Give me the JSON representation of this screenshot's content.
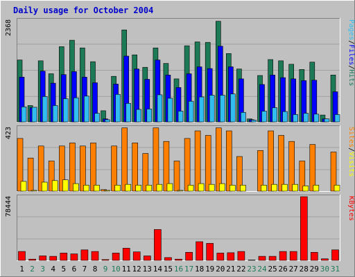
{
  "title": "Daily usage for October 2004",
  "colors": {
    "background": "#c0c0c0",
    "plot_bg": "#c0c0c0",
    "hits": "#1d7a57",
    "files": "#0000ff",
    "pages": "#32bdf0",
    "visits": "#ff8000",
    "sites": "#ffff00",
    "kbytes": "#ff0000",
    "title": "#0000cc",
    "weekday_label": "#000000",
    "weekend_label": "#1d7a57"
  },
  "chart_data": [
    {
      "type": "bar",
      "panel": "hits-files-pages",
      "ymax_label": "2368",
      "ymax": 2368,
      "legend": [
        {
          "text": "Pages",
          "color": "#32bdf0"
        },
        {
          "text": "/",
          "color": "#000000"
        },
        {
          "text": "Files",
          "color": "#0000ff"
        },
        {
          "text": "/",
          "color": "#000000"
        },
        {
          "text": "Hits",
          "color": "#1d7a57"
        }
      ],
      "categories": [
        "1",
        "2",
        "3",
        "4",
        "5",
        "6",
        "7",
        "8",
        "9",
        "10",
        "11",
        "12",
        "13",
        "14",
        "15",
        "16",
        "17",
        "18",
        "19",
        "20",
        "21",
        "22",
        "23",
        "24",
        "25",
        "26",
        "27",
        "28",
        "29",
        "30",
        "31"
      ],
      "series": [
        {
          "name": "Hits",
          "values": [
            1440,
            380,
            1420,
            1120,
            1750,
            1900,
            1720,
            1400,
            260,
            1060,
            2140,
            1560,
            1270,
            1720,
            1360,
            1000,
            1770,
            1860,
            1850,
            2340,
            1590,
            1230,
            70,
            1080,
            1450,
            1420,
            1340,
            1220,
            1390,
            160,
            1090
          ]
        },
        {
          "name": "Files",
          "values": [
            1040,
            330,
            1180,
            900,
            1100,
            1170,
            1040,
            910,
            70,
            880,
            1530,
            1230,
            990,
            1440,
            1090,
            800,
            1120,
            1280,
            1240,
            1760,
            1280,
            1000,
            50,
            870,
            1090,
            1030,
            1000,
            960,
            970,
            70,
            700
          ]
        },
        {
          "name": "Pages",
          "values": [
            350,
            340,
            590,
            380,
            540,
            560,
            600,
            200,
            50,
            640,
            430,
            290,
            300,
            630,
            550,
            250,
            480,
            580,
            620,
            620,
            650,
            220,
            40,
            250,
            330,
            240,
            170,
            200,
            180,
            70,
            170
          ]
        }
      ]
    },
    {
      "type": "bar",
      "panel": "visits-sites",
      "ymax_label": "423",
      "ymax": 423,
      "legend": [
        {
          "text": "Sites",
          "color": "#ff8000"
        },
        {
          "text": "/",
          "color": "#000000"
        },
        {
          "text": "Visits",
          "color": "#ffff00"
        }
      ],
      "categories": [
        "1",
        "2",
        "3",
        "4",
        "5",
        "6",
        "7",
        "8",
        "9",
        "10",
        "11",
        "12",
        "13",
        "14",
        "15",
        "16",
        "17",
        "18",
        "19",
        "20",
        "21",
        "22",
        "23",
        "24",
        "25",
        "26",
        "27",
        "28",
        "29",
        "30",
        "31"
      ],
      "series": [
        {
          "name": "Visits",
          "values": [
            350,
            220,
            300,
            200,
            300,
            320,
            300,
            320,
            10,
            300,
            420,
            320,
            250,
            420,
            330,
            200,
            350,
            400,
            370,
            420,
            400,
            230,
            0,
            270,
            400,
            370,
            330,
            200,
            310,
            0,
            260
          ]
        },
        {
          "name": "Sites",
          "values": [
            65,
            5,
            60,
            70,
            75,
            50,
            40,
            40,
            5,
            40,
            45,
            40,
            40,
            45,
            50,
            5,
            40,
            50,
            45,
            50,
            40,
            40,
            0,
            40,
            45,
            45,
            45,
            35,
            40,
            0,
            40
          ]
        }
      ]
    },
    {
      "type": "bar",
      "panel": "kbytes",
      "ymax_label": "78444",
      "ymax": 78444,
      "legend": [
        {
          "text": "KBytes",
          "color": "#ff0000"
        }
      ],
      "categories": [
        "1",
        "2",
        "3",
        "4",
        "5",
        "6",
        "7",
        "8",
        "9",
        "10",
        "11",
        "12",
        "13",
        "14",
        "15",
        "16",
        "17",
        "18",
        "19",
        "20",
        "21",
        "22",
        "23",
        "24",
        "25",
        "26",
        "27",
        "28",
        "29",
        "30",
        "31"
      ],
      "series": [
        {
          "name": "KBytes",
          "values": [
            11000,
            1500,
            5500,
            5000,
            9000,
            8000,
            13000,
            11000,
            1000,
            9000,
            15000,
            10500,
            5500,
            38000,
            3500,
            1500,
            10000,
            23000,
            21000,
            9000,
            9500,
            11000,
            500,
            5000,
            5000,
            11000,
            11000,
            78444,
            10000,
            2000,
            13000
          ]
        }
      ]
    }
  ],
  "weekend_days": [
    2,
    3,
    9,
    10,
    16,
    17,
    23,
    24,
    30,
    31
  ]
}
